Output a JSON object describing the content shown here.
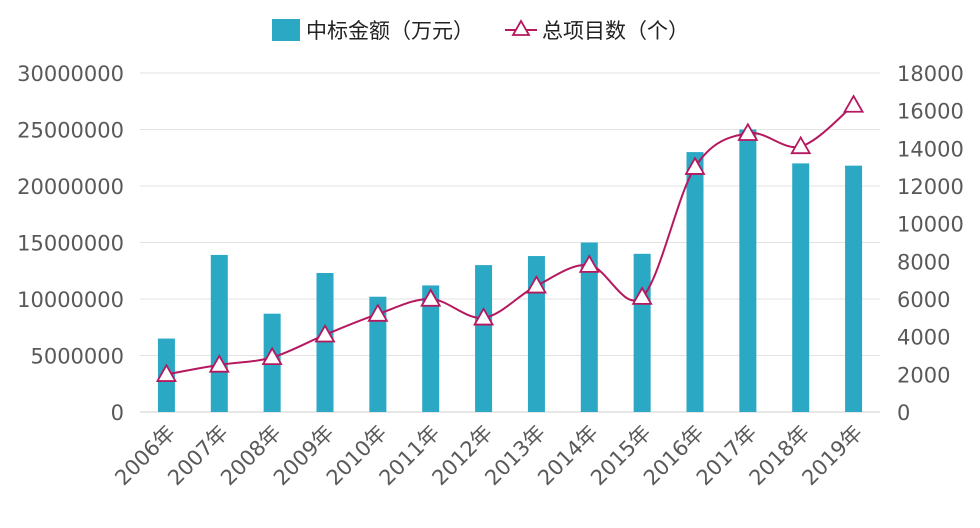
{
  "chart_data": {
    "type": "bar+line",
    "title": "",
    "categories": [
      "2006年",
      "2007年",
      "2008年",
      "2009年",
      "2010年",
      "2011年",
      "2012年",
      "2013年",
      "2014年",
      "2015年",
      "2016年",
      "2017年",
      "2018年",
      "2019年"
    ],
    "series": [
      {
        "name": "中标金额（万元）",
        "type": "bar",
        "axis": "left",
        "color": "#2aa8c4",
        "values": [
          6500000,
          13900000,
          8700000,
          12300000,
          10200000,
          11200000,
          13000000,
          13800000,
          15000000,
          14000000,
          23000000,
          25000000,
          22000000,
          21800000
        ]
      },
      {
        "name": "总项目数（个）",
        "type": "line",
        "axis": "right",
        "color": "#b5185f",
        "marker": "triangle",
        "values": [
          2000,
          2500,
          2900,
          4100,
          5200,
          6000,
          5000,
          6700,
          7800,
          6100,
          13000,
          14800,
          14100,
          16300
        ]
      }
    ],
    "y_left": {
      "min": 0,
      "max": 30000000,
      "ticks": [
        "0",
        "5000000",
        "10000000",
        "15000000",
        "20000000",
        "25000000",
        "30000000"
      ]
    },
    "y_right": {
      "min": 0,
      "max": 18000,
      "ticks": [
        "0",
        "2000",
        "4000",
        "6000",
        "8000",
        "10000",
        "12000",
        "14000",
        "16000",
        "18000"
      ]
    },
    "grid": true,
    "legend_position": "top-center"
  }
}
